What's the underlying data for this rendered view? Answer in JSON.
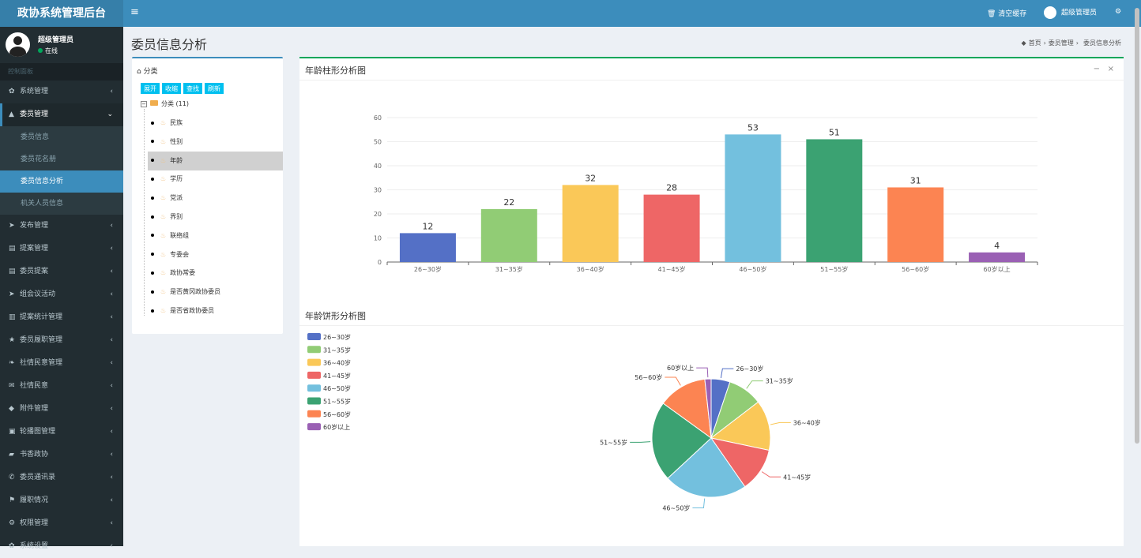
{
  "app": {
    "title": "政协系统管理后台"
  },
  "header": {
    "clear_cache": "清空缓存",
    "user": "超级管理员"
  },
  "sidebar": {
    "user_name": "超级管理员",
    "status": "在线",
    "section": "控制面板",
    "items": [
      {
        "label": "系统管理",
        "icon": "gear-icon"
      },
      {
        "label": "委员管理",
        "icon": "user-icon",
        "open": true,
        "children": [
          {
            "label": "委员信息"
          },
          {
            "label": "委员花名册"
          },
          {
            "label": "委员信息分析",
            "active": true
          },
          {
            "label": "机关人员信息"
          }
        ]
      },
      {
        "label": "发布管理",
        "icon": "paper-plane-icon"
      },
      {
        "label": "提案管理",
        "icon": "newspaper-icon"
      },
      {
        "label": "委员提案",
        "icon": "newspaper-icon"
      },
      {
        "label": "组会议活动",
        "icon": "paper-plane-icon"
      },
      {
        "label": "提案统计管理",
        "icon": "bar-chart-icon"
      },
      {
        "label": "委员履职管理",
        "icon": "star-icon"
      },
      {
        "label": "社情民意管理",
        "icon": "leaf-icon"
      },
      {
        "label": "社情民意",
        "icon": "envelope-icon"
      },
      {
        "label": "附件管理",
        "icon": "tags-icon"
      },
      {
        "label": "轮播图管理",
        "icon": "image-icon"
      },
      {
        "label": "书香政协",
        "icon": "book-icon"
      },
      {
        "label": "委员通讯录",
        "icon": "phone-icon"
      },
      {
        "label": "履职情况",
        "icon": "flag-icon"
      },
      {
        "label": "权限管理",
        "icon": "cogs-icon"
      },
      {
        "label": "系统设置",
        "icon": "gear-icon"
      }
    ]
  },
  "page": {
    "title": "委员信息分析",
    "breadcrumb": [
      "首页",
      "委员管理",
      "委员信息分析"
    ]
  },
  "tree": {
    "title": "分类",
    "buttons": [
      "展开",
      "收缩",
      "查找",
      "刷新"
    ],
    "root": "分类 (11)",
    "nodes": [
      "民族",
      "性别",
      "年龄",
      "学历",
      "党派",
      "界别",
      "联络组",
      "专委会",
      "政协常委",
      "是否黄冈政协委员",
      "是否省政协委员"
    ],
    "selected": 2
  },
  "chart_data": [
    {
      "type": "bar",
      "title": "年龄柱形分析图",
      "categories": [
        "26~30岁",
        "31~35岁",
        "36~40岁",
        "41~45岁",
        "46~50岁",
        "51~55岁",
        "56~60岁",
        "60岁以上"
      ],
      "values": [
        12,
        22,
        32,
        28,
        53,
        51,
        31,
        4
      ],
      "ylim": [
        0,
        60
      ],
      "yticks": [
        0,
        10,
        20,
        30,
        40,
        50,
        60
      ],
      "grid": true,
      "colors": [
        "#5470c6",
        "#91cc75",
        "#fac858",
        "#ee6666",
        "#73c0de",
        "#3ba272",
        "#fc8452",
        "#9a60b4"
      ]
    },
    {
      "type": "pie",
      "title": "年龄饼形分析图",
      "labels": [
        "26~30岁",
        "31~35岁",
        "36~40岁",
        "41~45岁",
        "46~50岁",
        "51~55岁",
        "56~60岁",
        "60岁以上"
      ],
      "values": [
        12,
        22,
        32,
        28,
        53,
        51,
        31,
        4
      ],
      "legend": "top-left",
      "colors": [
        "#5470c6",
        "#91cc75",
        "#fac858",
        "#ee6666",
        "#73c0de",
        "#3ba272",
        "#fc8452",
        "#9a60b4"
      ]
    }
  ]
}
